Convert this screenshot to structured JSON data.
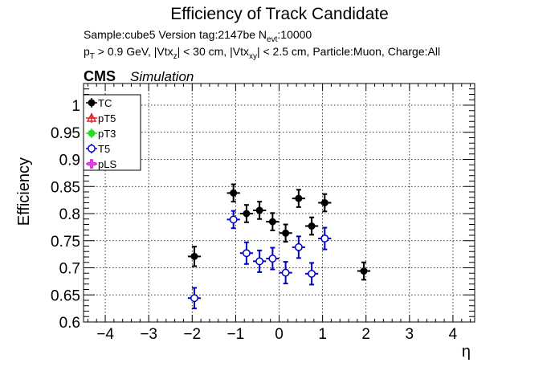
{
  "chart_data": {
    "type": "scatter",
    "title": "Efficiency of Track Candidate",
    "subtitle_line1": {
      "sample": "Sample:cube5   Version tag:2147be  N",
      "sub": "evt",
      "rest": ":10000"
    },
    "subtitle_line2": {
      "p": "p",
      "p_sub": "T",
      "a": " > 0.9 GeV, |Vtx",
      "z_sub": "z",
      "b": "| < 30 cm, |Vtx",
      "xy_sub": "xy",
      "c": "| < 2.5 cm, Particle:Muon, Charge:All"
    },
    "cms_label": "CMS",
    "cms_sublabel": "Simulation",
    "xlabel": "η",
    "ylabel": "Efficiency",
    "xlim": [
      -4.5,
      4.5
    ],
    "ylim": [
      0.6,
      1.04
    ],
    "x_ticks": [
      -4,
      -3,
      -2,
      -1,
      0,
      1,
      2,
      3,
      4
    ],
    "x_tick_labels": [
      "−4",
      "−3",
      "−2",
      "−1",
      "0",
      "1",
      "2",
      "3",
      "4"
    ],
    "y_ticks": [
      0.6,
      0.65,
      0.7,
      0.75,
      0.8,
      0.85,
      0.9,
      0.95,
      1.0
    ],
    "y_tick_labels": [
      "0.6",
      "0.65",
      "0.7",
      "0.75",
      "0.8",
      "0.85",
      "0.9",
      "0.95",
      "1"
    ],
    "grid": true,
    "legend_position": "top-left",
    "series": [
      {
        "name": "TC",
        "color": "#000000",
        "marker": "filled-circle",
        "points": [
          {
            "x": -1.95,
            "y": 0.721,
            "xerr": 0.15,
            "yerr": 0.018
          },
          {
            "x": -1.05,
            "y": 0.838,
            "xerr": 0.15,
            "yerr": 0.016
          },
          {
            "x": -0.75,
            "y": 0.8,
            "xerr": 0.15,
            "yerr": 0.016
          },
          {
            "x": -0.45,
            "y": 0.806,
            "xerr": 0.15,
            "yerr": 0.016
          },
          {
            "x": -0.15,
            "y": 0.785,
            "xerr": 0.15,
            "yerr": 0.016
          },
          {
            "x": 0.15,
            "y": 0.764,
            "xerr": 0.15,
            "yerr": 0.016
          },
          {
            "x": 0.45,
            "y": 0.828,
            "xerr": 0.15,
            "yerr": 0.016
          },
          {
            "x": 0.75,
            "y": 0.777,
            "xerr": 0.15,
            "yerr": 0.016
          },
          {
            "x": 1.05,
            "y": 0.82,
            "xerr": 0.15,
            "yerr": 0.016
          },
          {
            "x": 1.95,
            "y": 0.694,
            "xerr": 0.15,
            "yerr": 0.016
          }
        ]
      },
      {
        "name": "pT5",
        "color": "#e02020",
        "marker": "open-triangle",
        "points": []
      },
      {
        "name": "pT3",
        "color": "#22dd22",
        "marker": "filled-circle",
        "points": []
      },
      {
        "name": "T5",
        "color": "#0000cc",
        "marker": "open-circle",
        "points": [
          {
            "x": -1.95,
            "y": 0.644,
            "xerr": 0.15,
            "yerr": 0.019
          },
          {
            "x": -1.05,
            "y": 0.789,
            "xerr": 0.15,
            "yerr": 0.016
          },
          {
            "x": -0.75,
            "y": 0.727,
            "xerr": 0.15,
            "yerr": 0.02
          },
          {
            "x": -0.45,
            "y": 0.712,
            "xerr": 0.15,
            "yerr": 0.02
          },
          {
            "x": -0.15,
            "y": 0.717,
            "xerr": 0.15,
            "yerr": 0.02
          },
          {
            "x": 0.15,
            "y": 0.691,
            "xerr": 0.15,
            "yerr": 0.02
          },
          {
            "x": 0.45,
            "y": 0.738,
            "xerr": 0.15,
            "yerr": 0.02
          },
          {
            "x": 0.75,
            "y": 0.689,
            "xerr": 0.15,
            "yerr": 0.02
          },
          {
            "x": 1.05,
            "y": 0.754,
            "xerr": 0.15,
            "yerr": 0.02
          }
        ]
      },
      {
        "name": "pLS",
        "color": "#dd22dd",
        "marker": "open-cross",
        "points": []
      }
    ]
  }
}
